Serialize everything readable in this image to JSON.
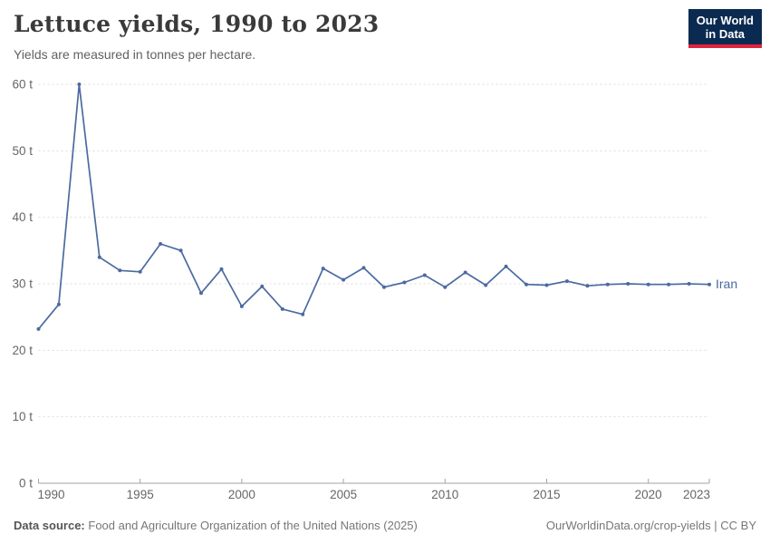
{
  "header": {
    "title": "Lettuce yields, 1990 to 2023",
    "subtitle": "Yields are measured in tonnes per hectare.",
    "logo_line1": "Our World",
    "logo_line2": "in Data"
  },
  "footer": {
    "data_source_label": "Data source:",
    "data_source_text": "Food and Agriculture Organization of the United Nations (2025)",
    "attribution": "OurWorldinData.org/crop-yields | CC BY"
  },
  "colors": {
    "series_blue": "#4c6aa0",
    "gridline": "#dcdcdc",
    "axis": "#a3a3a3",
    "tick_text": "#666666",
    "logo_bg": "#0b2a51",
    "logo_stripe": "#e0233c"
  },
  "chart_data": {
    "type": "line",
    "title": "Lettuce yields, 1990 to 2023",
    "ylabel": "tonnes per hectare",
    "unit_suffix": " t",
    "ylim": [
      0,
      60
    ],
    "yticks": [
      0,
      10,
      20,
      30,
      40,
      50,
      60
    ],
    "xticks": [
      1990,
      1995,
      2000,
      2005,
      2010,
      2015,
      2020,
      2023
    ],
    "grid": "horizontal-dashed",
    "legend": "end-of-line-label",
    "x": [
      1990,
      1991,
      1992,
      1993,
      1994,
      1995,
      1996,
      1997,
      1998,
      1999,
      2000,
      2001,
      2002,
      2003,
      2004,
      2005,
      2006,
      2007,
      2008,
      2009,
      2010,
      2011,
      2012,
      2013,
      2014,
      2015,
      2016,
      2017,
      2018,
      2019,
      2020,
      2021,
      2022,
      2023
    ],
    "series": [
      {
        "name": "Iran",
        "values": [
          23.2,
          26.9,
          60.0,
          34.0,
          32.0,
          31.8,
          36.0,
          35.0,
          28.6,
          32.2,
          26.6,
          29.6,
          26.2,
          25.4,
          32.3,
          30.6,
          32.4,
          29.5,
          30.2,
          31.3,
          29.5,
          31.7,
          29.8,
          32.6,
          29.9,
          29.8,
          30.4,
          29.7,
          29.9,
          30.0,
          29.9,
          29.9,
          30.0,
          29.9
        ]
      }
    ]
  }
}
